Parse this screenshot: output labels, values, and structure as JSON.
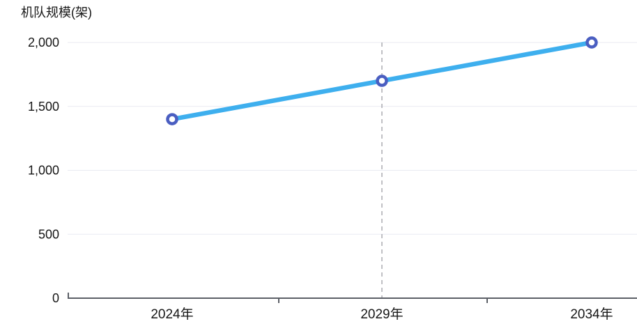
{
  "chart_data": {
    "type": "line",
    "title": "机队规模(架)",
    "categories": [
      "2024年",
      "2029年",
      "2034年"
    ],
    "values": [
      1400,
      1700,
      2000
    ],
    "xlabel": "",
    "ylabel": "机队规模(架)",
    "ylim": [
      0,
      2000
    ],
    "yticks": [
      0,
      500,
      1000,
      1500,
      2000
    ],
    "ytick_labels": [
      "0",
      "500",
      "1,000",
      "1,500",
      "2,000"
    ],
    "grid": "horizontal",
    "legend_position": "none",
    "reference_line": {
      "category": "2029年",
      "orientation": "vertical",
      "style": "dashed"
    },
    "colors": {
      "line": "#3EAFEE",
      "marker_ring": "#4A5EC1",
      "marker_fill": "#FFFFFF",
      "gridline": "#E9EAF2",
      "axis": "#5B5F66",
      "reference": "#AAABB1",
      "text": "#161616"
    }
  }
}
